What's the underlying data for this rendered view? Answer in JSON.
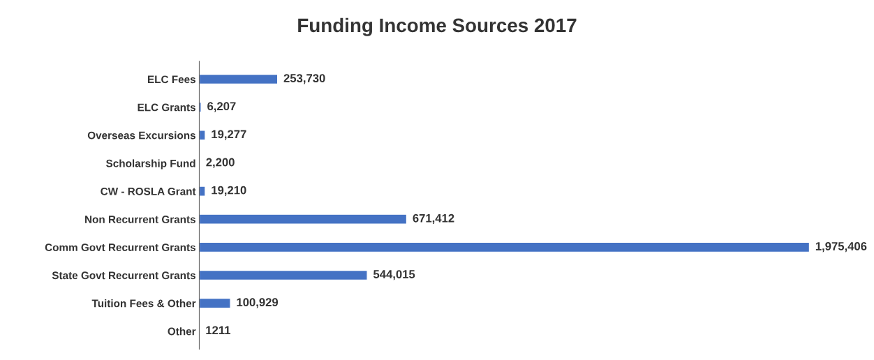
{
  "chart_data": {
    "type": "bar",
    "orientation": "horizontal",
    "title": "Funding Income Sources 2017",
    "categories": [
      "ELC Fees",
      "ELC Grants",
      "Overseas Excursions",
      "Scholarship Fund",
      "CW - ROSLA Grant",
      "Non Recurrent Grants",
      "Comm Govt Recurrent Grants",
      "State Govt Recurrent Grants",
      "Tuition Fees & Other",
      "Other"
    ],
    "values": [
      253730,
      6207,
      19277,
      2200,
      19210,
      671412,
      1975406,
      544015,
      100929,
      1211
    ],
    "value_labels": [
      "253,730",
      "6,207",
      "19,277",
      "2,200",
      "19,210",
      "671,412",
      "1,975,406",
      "544,015",
      "100,929",
      "1211"
    ],
    "color": "#4472c4",
    "grid": false,
    "legend": false
  }
}
